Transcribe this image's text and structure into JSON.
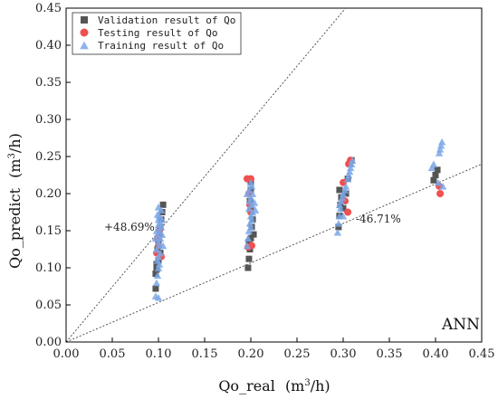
{
  "chart_data": {
    "type": "scatter",
    "title": "",
    "xlabel": "Qo_real",
    "xlabel_unit": "(m³/h)",
    "ylabel": "Qo_predict",
    "ylabel_unit": "(m³/h)",
    "xlim": [
      0,
      0.45
    ],
    "ylim": [
      0,
      0.45
    ],
    "xticks": [
      "0.00",
      "0.05",
      "0.10",
      "0.15",
      "0.20",
      "0.25",
      "0.30",
      "0.35",
      "0.40",
      "0.45"
    ],
    "yticks": [
      "0.00",
      "0.05",
      "0.10",
      "0.15",
      "0.20",
      "0.25",
      "0.30",
      "0.35",
      "0.40",
      "0.45"
    ],
    "grid": false,
    "legend_position": "top-left",
    "model_label": "ANN",
    "reference_lines": [
      {
        "label": "+48.69%",
        "slope": 1.4869,
        "style": "dotted"
      },
      {
        "label": "-46.71%",
        "slope": 0.5329,
        "style": "dotted"
      }
    ],
    "series": [
      {
        "name": "Validation result of Qo",
        "marker": "square",
        "color": "#555555",
        "points": [
          [
            0.097,
            0.072
          ],
          [
            0.097,
            0.092
          ],
          [
            0.098,
            0.098
          ],
          [
            0.098,
            0.105
          ],
          [
            0.099,
            0.125
          ],
          [
            0.1,
            0.135
          ],
          [
            0.101,
            0.145
          ],
          [
            0.102,
            0.155
          ],
          [
            0.103,
            0.165
          ],
          [
            0.104,
            0.175
          ],
          [
            0.105,
            0.185
          ],
          [
            0.102,
            0.12
          ],
          [
            0.1,
            0.11
          ],
          [
            0.197,
            0.1
          ],
          [
            0.198,
            0.112
          ],
          [
            0.199,
            0.125
          ],
          [
            0.2,
            0.14
          ],
          [
            0.201,
            0.155
          ],
          [
            0.202,
            0.165
          ],
          [
            0.2,
            0.178
          ],
          [
            0.199,
            0.19
          ],
          [
            0.2,
            0.205
          ],
          [
            0.2,
            0.215
          ],
          [
            0.203,
            0.145
          ],
          [
            0.198,
            0.135
          ],
          [
            0.295,
            0.155
          ],
          [
            0.296,
            0.17
          ],
          [
            0.297,
            0.185
          ],
          [
            0.298,
            0.195
          ],
          [
            0.296,
            0.205
          ],
          [
            0.303,
            0.2
          ],
          [
            0.305,
            0.22
          ],
          [
            0.307,
            0.24
          ],
          [
            0.309,
            0.245
          ],
          [
            0.3,
            0.18
          ],
          [
            0.398,
            0.218
          ],
          [
            0.4,
            0.225
          ],
          [
            0.402,
            0.232
          ]
        ]
      },
      {
        "name": "Testing result of Qo",
        "marker": "circle",
        "color": "#f05050",
        "points": [
          [
            0.098,
            0.12
          ],
          [
            0.1,
            0.13
          ],
          [
            0.101,
            0.15
          ],
          [
            0.103,
            0.115
          ],
          [
            0.099,
            0.14
          ],
          [
            0.196,
            0.22
          ],
          [
            0.2,
            0.22
          ],
          [
            0.198,
            0.2
          ],
          [
            0.199,
            0.185
          ],
          [
            0.197,
            0.128
          ],
          [
            0.201,
            0.13
          ],
          [
            0.2,
            0.175
          ],
          [
            0.302,
            0.19
          ],
          [
            0.305,
            0.175
          ],
          [
            0.306,
            0.24
          ],
          [
            0.308,
            0.245
          ],
          [
            0.3,
            0.215
          ],
          [
            0.405,
            0.2
          ],
          [
            0.404,
            0.21
          ]
        ]
      },
      {
        "name": "Training result of Qo",
        "marker": "triangle",
        "color": "#7aa7e8",
        "points": [
          [
            0.097,
            0.062
          ],
          [
            0.1,
            0.06
          ],
          [
            0.098,
            0.08
          ],
          [
            0.099,
            0.09
          ],
          [
            0.1,
            0.1
          ],
          [
            0.101,
            0.105
          ],
          [
            0.099,
            0.11
          ],
          [
            0.1,
            0.115
          ],
          [
            0.102,
            0.12
          ],
          [
            0.098,
            0.125
          ],
          [
            0.101,
            0.13
          ],
          [
            0.1,
            0.135
          ],
          [
            0.102,
            0.14
          ],
          [
            0.099,
            0.145
          ],
          [
            0.101,
            0.15
          ],
          [
            0.103,
            0.155
          ],
          [
            0.1,
            0.158
          ],
          [
            0.102,
            0.16
          ],
          [
            0.104,
            0.165
          ],
          [
            0.101,
            0.17
          ],
          [
            0.103,
            0.178
          ],
          [
            0.1,
            0.182
          ],
          [
            0.098,
            0.15
          ],
          [
            0.097,
            0.14
          ],
          [
            0.104,
            0.145
          ],
          [
            0.105,
            0.13
          ],
          [
            0.1,
            0.165
          ],
          [
            0.099,
            0.172
          ],
          [
            0.196,
            0.13
          ],
          [
            0.197,
            0.14
          ],
          [
            0.198,
            0.15
          ],
          [
            0.2,
            0.155
          ],
          [
            0.199,
            0.16
          ],
          [
            0.201,
            0.165
          ],
          [
            0.2,
            0.17
          ],
          [
            0.202,
            0.175
          ],
          [
            0.198,
            0.18
          ],
          [
            0.201,
            0.185
          ],
          [
            0.199,
            0.19
          ],
          [
            0.2,
            0.195
          ],
          [
            0.202,
            0.2
          ],
          [
            0.198,
            0.205
          ],
          [
            0.201,
            0.21
          ],
          [
            0.2,
            0.215
          ],
          [
            0.204,
            0.188
          ],
          [
            0.205,
            0.178
          ],
          [
            0.196,
            0.2
          ],
          [
            0.294,
            0.148
          ],
          [
            0.295,
            0.16
          ],
          [
            0.296,
            0.17
          ],
          [
            0.297,
            0.18
          ],
          [
            0.298,
            0.19
          ],
          [
            0.299,
            0.195
          ],
          [
            0.3,
            0.2
          ],
          [
            0.302,
            0.205
          ],
          [
            0.303,
            0.21
          ],
          [
            0.305,
            0.22
          ],
          [
            0.306,
            0.225
          ],
          [
            0.307,
            0.23
          ],
          [
            0.308,
            0.235
          ],
          [
            0.309,
            0.24
          ],
          [
            0.31,
            0.245
          ],
          [
            0.3,
            0.17
          ],
          [
            0.296,
            0.185
          ],
          [
            0.396,
            0.235
          ],
          [
            0.398,
            0.24
          ],
          [
            0.404,
            0.255
          ],
          [
            0.405,
            0.26
          ],
          [
            0.406,
            0.265
          ],
          [
            0.407,
            0.27
          ],
          [
            0.403,
            0.215
          ],
          [
            0.408,
            0.21
          ]
        ]
      }
    ]
  }
}
